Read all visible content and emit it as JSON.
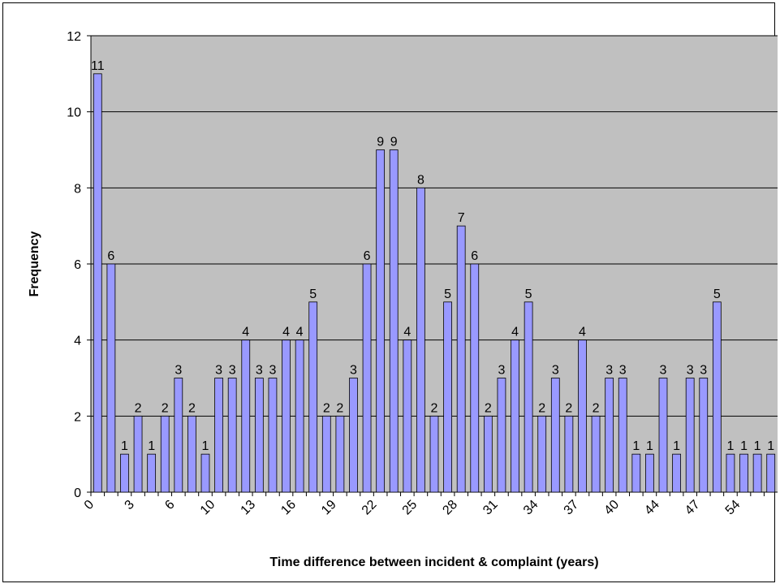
{
  "chart_data": {
    "type": "bar",
    "x_label": "Time difference between incident & complaint (years)",
    "y_label": "Frequency",
    "categories": [
      "0",
      null,
      null,
      "3",
      null,
      null,
      "6",
      null,
      null,
      "10",
      null,
      null,
      "13",
      null,
      null,
      "16",
      null,
      null,
      "19",
      null,
      null,
      "22",
      null,
      null,
      "25",
      null,
      null,
      "28",
      null,
      null,
      "31",
      null,
      null,
      "34",
      null,
      null,
      "37",
      null,
      null,
      "40",
      null,
      null,
      "44",
      null,
      null,
      "47",
      null,
      null,
      "54",
      null,
      null
    ],
    "values": [
      11,
      6,
      1,
      2,
      1,
      2,
      3,
      2,
      1,
      3,
      3,
      4,
      3,
      3,
      4,
      4,
      5,
      2,
      2,
      3,
      6,
      9,
      9,
      4,
      8,
      2,
      5,
      7,
      6,
      2,
      3,
      4,
      5,
      2,
      3,
      2,
      4,
      2,
      3,
      3,
      1,
      1,
      3,
      1,
      3,
      3,
      5,
      1,
      1,
      1,
      1
    ],
    "color": "#9999ff",
    "ylim": [
      0,
      12
    ],
    "yticks": [
      0,
      2,
      4,
      6,
      8,
      10,
      12
    ],
    "grid": true
  }
}
